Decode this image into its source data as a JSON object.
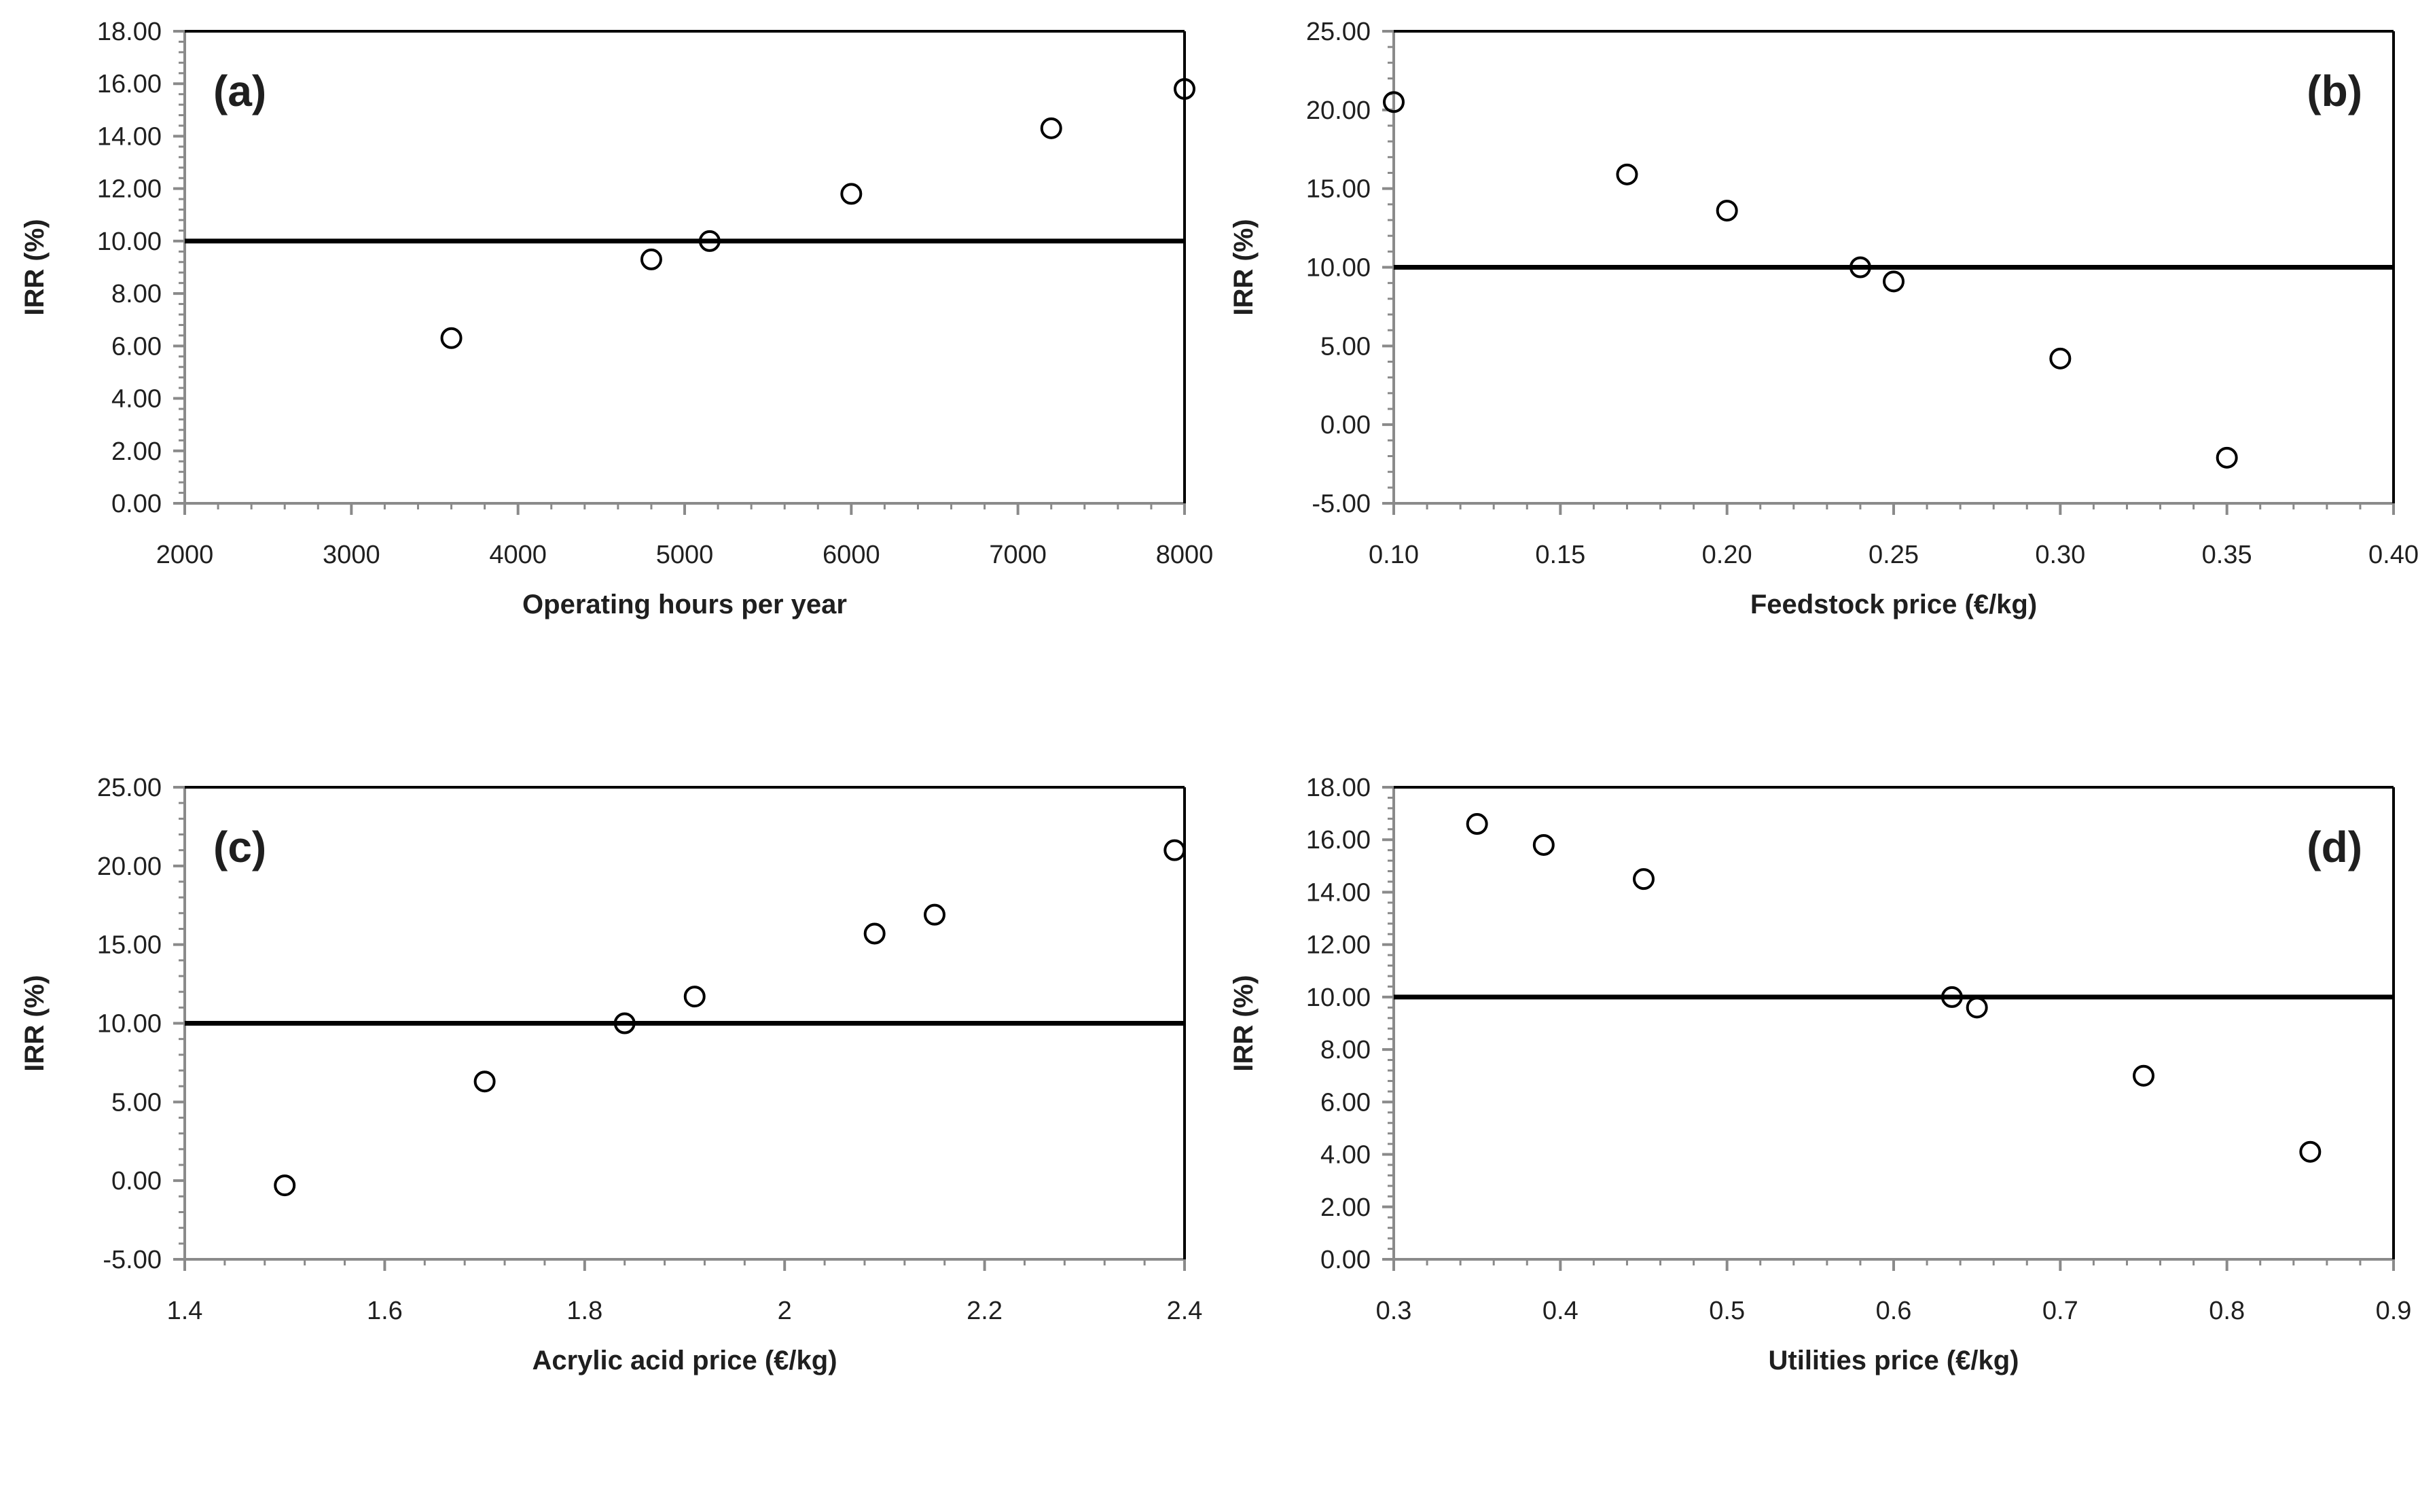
{
  "figure": {
    "background_color": "#ffffff",
    "colors": {
      "axis_line": "#8a8a8a",
      "tick_mark": "#8a8a8a",
      "tick_label_text": "#1f1f1f",
      "frame_border": "#000000",
      "reference_line": "#000000",
      "marker_stroke": "#000000"
    },
    "shared_y_axis_title": "IRR (%)",
    "reference_irr_percent": 10.0
  },
  "chart_data": [
    {
      "type": "scatter",
      "panel_label": "(a)",
      "panel_label_position": "top-left",
      "xlabel": "Operating hours per year",
      "ylabel": "IRR (%)",
      "xlim": [
        2000,
        8000
      ],
      "ylim": [
        0,
        18
      ],
      "x_tick_values": [
        2000,
        3000,
        4000,
        5000,
        6000,
        7000,
        8000
      ],
      "x_tick_labels": [
        "2000",
        "3000",
        "4000",
        "5000",
        "6000",
        "7000",
        "8000"
      ],
      "x_minor_step": 200,
      "y_tick_values": [
        0,
        2,
        4,
        6,
        8,
        10,
        12,
        14,
        16,
        18
      ],
      "y_tick_labels": [
        "0.00",
        "2.00",
        "4.00",
        "6.00",
        "8.00",
        "10.00",
        "12.00",
        "14.00",
        "16.00",
        "18.00"
      ],
      "y_minor_step": 0.4,
      "reference_line_y": 10,
      "marker": "open-circle",
      "grid": false,
      "legend": null,
      "points": [
        [
          3600,
          6.3
        ],
        [
          4800,
          9.3
        ],
        [
          5150,
          10.0
        ],
        [
          6000,
          11.8
        ],
        [
          7200,
          14.3
        ],
        [
          8000,
          15.8
        ]
      ]
    },
    {
      "type": "scatter",
      "panel_label": "(b)",
      "panel_label_position": "top-right",
      "xlabel": "Feedstock price (€/kg)",
      "ylabel": "IRR (%)",
      "xlim": [
        0.1,
        0.4
      ],
      "ylim": [
        -5,
        25
      ],
      "x_tick_values": [
        0.1,
        0.15,
        0.2,
        0.25,
        0.3,
        0.35,
        0.4
      ],
      "x_tick_labels": [
        "0.10",
        "0.15",
        "0.20",
        "0.25",
        "0.30",
        "0.35",
        "0.40"
      ],
      "x_minor_step": 0.01,
      "y_tick_values": [
        -5,
        0,
        5,
        10,
        15,
        20,
        25
      ],
      "y_tick_labels": [
        "-5.00",
        "0.00",
        "5.00",
        "10.00",
        "15.00",
        "20.00",
        "25.00"
      ],
      "y_minor_step": 1,
      "reference_line_y": 10,
      "marker": "open-circle",
      "grid": false,
      "legend": null,
      "points": [
        [
          0.1,
          20.5
        ],
        [
          0.17,
          15.9
        ],
        [
          0.2,
          13.6
        ],
        [
          0.24,
          10.0
        ],
        [
          0.25,
          9.1
        ],
        [
          0.3,
          4.2
        ],
        [
          0.35,
          -2.1
        ]
      ]
    },
    {
      "type": "scatter",
      "panel_label": "(c)",
      "panel_label_position": "top-left",
      "xlabel": "Acrylic acid price  (€/kg)",
      "ylabel": "IRR (%)",
      "xlim": [
        1.4,
        2.4
      ],
      "ylim": [
        -5,
        25
      ],
      "x_tick_values": [
        1.4,
        1.6,
        1.8,
        2.0,
        2.2,
        2.4
      ],
      "x_tick_labels": [
        "1.4",
        "1.6",
        "1.8",
        "2",
        "2.2",
        "2.4"
      ],
      "x_minor_step": 0.04,
      "y_tick_values": [
        -5,
        0,
        5,
        10,
        15,
        20,
        25
      ],
      "y_tick_labels": [
        "-5.00",
        "0.00",
        "5.00",
        "10.00",
        "15.00",
        "20.00",
        "25.00"
      ],
      "y_minor_step": 1,
      "reference_line_y": 10,
      "marker": "open-circle",
      "grid": false,
      "legend": null,
      "points": [
        [
          1.5,
          -0.3
        ],
        [
          1.7,
          6.3
        ],
        [
          1.84,
          10.0
        ],
        [
          1.91,
          11.7
        ],
        [
          2.09,
          15.7
        ],
        [
          2.15,
          16.9
        ],
        [
          2.39,
          21.0
        ]
      ]
    },
    {
      "type": "scatter",
      "panel_label": "(d)",
      "panel_label_position": "top-right",
      "xlabel": "Utilities price (€/kg)",
      "ylabel": "IRR (%)",
      "xlim": [
        0.3,
        0.9
      ],
      "ylim": [
        0,
        18
      ],
      "x_tick_values": [
        0.3,
        0.4,
        0.5,
        0.6,
        0.7,
        0.8,
        0.9
      ],
      "x_tick_labels": [
        "0.3",
        "0.4",
        "0.5",
        "0.6",
        "0.7",
        "0.8",
        "0.9"
      ],
      "x_minor_step": 0.02,
      "y_tick_values": [
        0,
        2,
        4,
        6,
        8,
        10,
        12,
        14,
        16,
        18
      ],
      "y_tick_labels": [
        "0.00",
        "2.00",
        "4.00",
        "6.00",
        "8.00",
        "10.00",
        "12.00",
        "14.00",
        "16.00",
        "18.00"
      ],
      "y_minor_step": 0.4,
      "reference_line_y": 10,
      "marker": "open-circle",
      "grid": false,
      "legend": null,
      "points": [
        [
          0.35,
          16.6
        ],
        [
          0.39,
          15.8
        ],
        [
          0.45,
          14.5
        ],
        [
          0.635,
          10.0
        ],
        [
          0.65,
          9.6
        ],
        [
          0.75,
          7.0
        ],
        [
          0.85,
          4.1
        ]
      ]
    }
  ]
}
